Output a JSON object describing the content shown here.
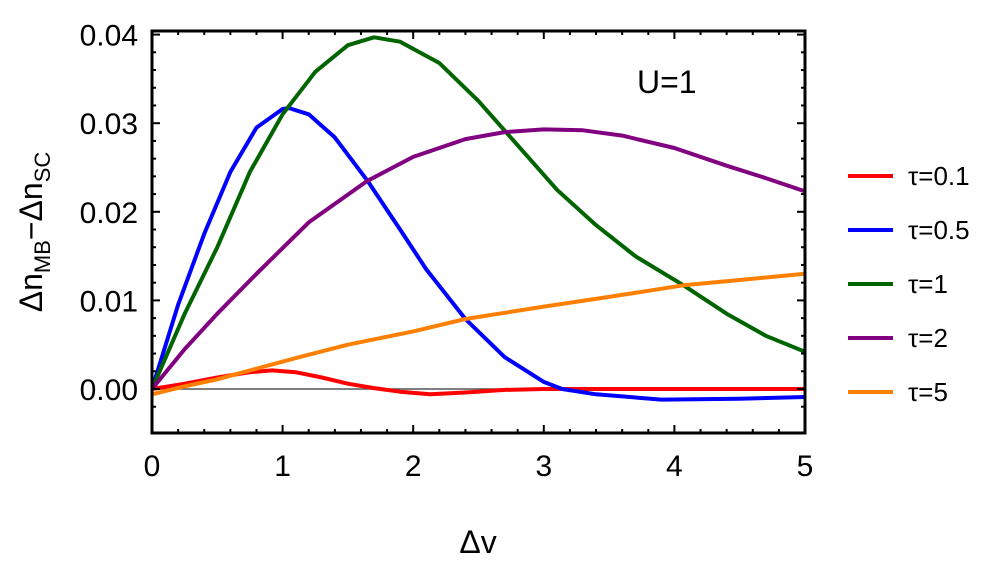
{
  "chart_data": {
    "type": "line",
    "title": "",
    "annotation": "U=1",
    "xlabel": "Δv",
    "ylabel": "Δn_MB − Δn_SC",
    "ylabel_parts": {
      "main1": "Δn",
      "sub1": "MB",
      "mid": "−Δn",
      "sub2": "SC"
    },
    "xlim": [
      0,
      5
    ],
    "ylim": [
      -0.0052,
      0.04
    ],
    "xticks": [
      0,
      1,
      2,
      3,
      4,
      5
    ],
    "xtick_labels": [
      "0",
      "1",
      "2",
      "3",
      "4",
      "5"
    ],
    "yticks": [
      0.0,
      0.01,
      0.02,
      0.03,
      0.04
    ],
    "ytick_labels": [
      "0.00",
      "0.01",
      "0.02",
      "0.03",
      "0.04"
    ],
    "grid": false,
    "zero_line": true,
    "legend_position": "right",
    "series": [
      {
        "name": "τ=0.1",
        "color": "#ff0000",
        "x": [
          0,
          0.25,
          0.5,
          0.75,
          0.92,
          1.1,
          1.3,
          1.5,
          1.7,
          1.9,
          2.13,
          2.4,
          2.7,
          3.0,
          3.5,
          4.0,
          4.5,
          5.0
        ],
        "values": [
          0,
          0.0006,
          0.0013,
          0.0019,
          0.0021,
          0.0019,
          0.0013,
          0.0006,
          0.0001,
          -0.0003,
          -0.0006,
          -0.0004,
          -0.0001,
          0.0,
          0.0,
          0.0,
          0.0,
          0.0
        ]
      },
      {
        "name": "τ=0.5",
        "color": "#0000ff",
        "x": [
          0,
          0.2,
          0.4,
          0.6,
          0.8,
          1.0,
          1.05,
          1.2,
          1.4,
          1.65,
          1.9,
          2.1,
          2.4,
          2.7,
          3.0,
          3.14,
          3.4,
          3.9,
          4.5,
          5.0
        ],
        "values": [
          0,
          0.0095,
          0.0175,
          0.0245,
          0.0295,
          0.0316,
          0.0317,
          0.031,
          0.0284,
          0.0235,
          0.018,
          0.0135,
          0.0079,
          0.0036,
          0.0008,
          0.0,
          -0.0006,
          -0.0012,
          -0.0011,
          -0.0009
        ]
      },
      {
        "name": "τ=1",
        "color": "#006400",
        "x": [
          0,
          0.25,
          0.5,
          0.75,
          1.0,
          1.25,
          1.5,
          1.7,
          1.9,
          2.2,
          2.5,
          2.8,
          3.1,
          3.4,
          3.7,
          4.07,
          4.4,
          4.7,
          5.0
        ],
        "values": [
          0,
          0.0085,
          0.016,
          0.0245,
          0.031,
          0.0358,
          0.0388,
          0.0397,
          0.0392,
          0.0368,
          0.0325,
          0.0275,
          0.0225,
          0.0185,
          0.015,
          0.0117,
          0.0085,
          0.006,
          0.0042
        ]
      },
      {
        "name": "τ=2",
        "color": "#800080",
        "x": [
          0,
          0.25,
          0.5,
          0.8,
          1.2,
          1.65,
          2.0,
          2.4,
          2.7,
          3.0,
          3.3,
          3.6,
          4.0,
          4.4,
          4.7,
          5.0
        ],
        "values": [
          0,
          0.0045,
          0.0085,
          0.013,
          0.0188,
          0.0235,
          0.0262,
          0.0282,
          0.029,
          0.0293,
          0.0292,
          0.0286,
          0.0272,
          0.0252,
          0.0238,
          0.0223
        ]
      },
      {
        "name": "τ=5",
        "color": "#ff8000",
        "x": [
          0,
          0.25,
          0.5,
          0.75,
          1.13,
          1.5,
          2.0,
          2.4,
          3.0,
          3.5,
          4.07,
          4.5,
          5.0
        ],
        "values": [
          -0.0006,
          0.0003,
          0.0011,
          0.0021,
          0.0036,
          0.005,
          0.0065,
          0.0079,
          0.0093,
          0.0104,
          0.0117,
          0.0123,
          0.013
        ]
      }
    ]
  }
}
